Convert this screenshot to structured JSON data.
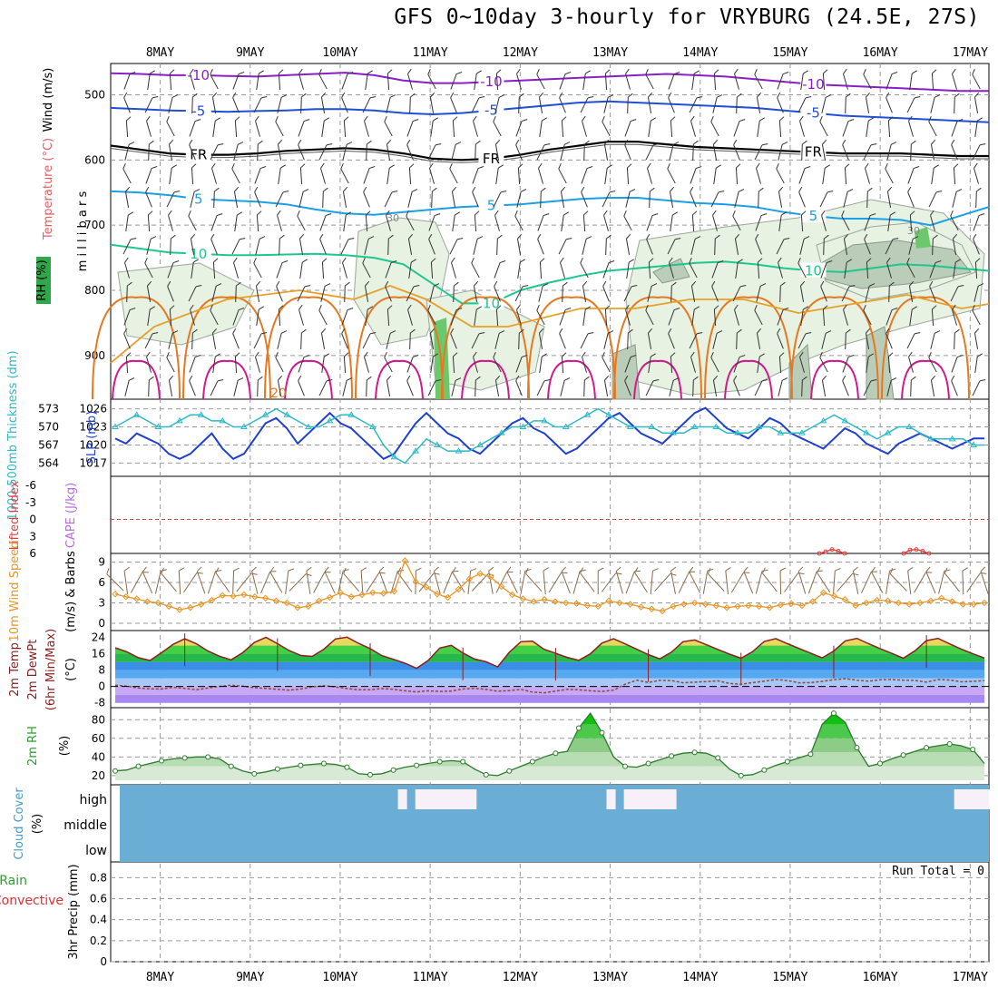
{
  "title": "GFS 0~10day 3-hourly for VRYBURG (24.5E, 27S)",
  "dates": [
    "8MAY",
    "9MAY",
    "10MAY",
    "11MAY",
    "12MAY",
    "13MAY",
    "14MAY",
    "15MAY",
    "16MAY",
    "17MAY"
  ],
  "colors": {
    "purple": "#8a1ec8",
    "blue": "#1f4fd6",
    "black": "#000000",
    "lightblue": "#1aa0e6",
    "green": "#1ec88c",
    "orange1": "#e6a028",
    "orange2": "#e67820",
    "magenta": "#d01a8c",
    "cyan": "#2fb8c8",
    "slp": "#1f3fd0",
    "wind10": "#e6962a",
    "barb": "#8a6a4a",
    "temp": "#8c1e1e",
    "cloud": "#6aaed6"
  },
  "chart_data": [
    {
      "id": "upper_air",
      "type": "contour",
      "ylabel": "m i l l i b a r s",
      "side_labels": [
        "Wind (m/s)",
        "Temperature (°C)",
        "RH (%)"
      ],
      "yticks": [
        500,
        600,
        700,
        800,
        900
      ],
      "ylim": [
        1000,
        450
      ],
      "isotherms": [
        {
          "label": "-10",
          "color": "purple",
          "y": [
            467,
            468,
            470,
            470,
            471,
            472,
            470,
            468,
            466,
            470,
            478,
            482,
            482,
            480,
            478,
            476,
            474,
            472,
            470,
            468,
            470,
            472,
            476,
            480,
            484,
            486,
            488,
            490,
            492,
            494,
            494
          ]
        },
        {
          "label": "-5",
          "color": "blue",
          "y": [
            520,
            522,
            524,
            525,
            526,
            525,
            524,
            522,
            522,
            524,
            528,
            530,
            528,
            524,
            520,
            516,
            512,
            510,
            512,
            514,
            516,
            518,
            520,
            524,
            528,
            532,
            534,
            536,
            538,
            540,
            542
          ]
        },
        {
          "label": "FR",
          "color": "black",
          "y": [
            578,
            584,
            590,
            592,
            592,
            590,
            586,
            584,
            582,
            584,
            590,
            598,
            600,
            598,
            592,
            584,
            578,
            572,
            572,
            576,
            580,
            582,
            584,
            586,
            588,
            590,
            590,
            590,
            592,
            594,
            594
          ]
        },
        {
          "label": "5",
          "color": "lightblue",
          "y": [
            648,
            650,
            654,
            660,
            662,
            664,
            668,
            676,
            682,
            684,
            680,
            676,
            672,
            670,
            668,
            664,
            660,
            658,
            658,
            662,
            666,
            668,
            672,
            680,
            686,
            690,
            690,
            692,
            700,
            686,
            672
          ]
        },
        {
          "label": "10",
          "color": "green",
          "y": [
            730,
            736,
            742,
            744,
            746,
            746,
            745,
            744,
            746,
            750,
            760,
            790,
            820,
            820,
            800,
            788,
            778,
            770,
            766,
            762,
            758,
            756,
            760,
            766,
            770,
            772,
            766,
            760,
            762,
            766,
            770
          ]
        }
      ],
      "rh_label": "30"
    },
    {
      "id": "slp_thickness",
      "type": "line",
      "ylabel_left": "1000-500mb Thickness (dm)",
      "ylabel_right": "SLP (mb)",
      "yticks_left": [
        564,
        567,
        570,
        573
      ],
      "yticks_right": [
        1017,
        1020,
        1023,
        1026
      ],
      "series": [
        {
          "name": "SLP",
          "unit": "mb",
          "values": [
            1021,
            1020,
            1022,
            1021,
            1020,
            1018,
            1017,
            1018,
            1020,
            1022,
            1019,
            1017,
            1018,
            1021,
            1024,
            1025,
            1023,
            1020,
            1022,
            1024,
            1026,
            1024,
            1023,
            1021,
            1019,
            1017,
            1018,
            1021,
            1024,
            1026,
            1024,
            1022,
            1021,
            1019,
            1018,
            1020,
            1022,
            1024,
            1025,
            1023,
            1022,
            1020,
            1018,
            1019,
            1021,
            1023,
            1025,
            1026,
            1024,
            1022,
            1021,
            1020,
            1022,
            1024,
            1026,
            1027,
            1025,
            1023,
            1022,
            1021,
            1023,
            1025,
            1024,
            1022,
            1021,
            1020,
            1019,
            1021,
            1023,
            1022,
            1020,
            1019,
            1018,
            1020,
            1021,
            1022,
            1021,
            1020,
            1019,
            1020,
            1021,
            1021
          ]
        },
        {
          "name": "Thickness",
          "unit": "dm",
          "values": [
            570,
            571,
            572,
            571,
            570,
            570,
            571,
            572,
            572,
            571,
            571,
            570,
            570,
            571,
            572,
            573,
            572,
            571,
            570,
            570,
            571,
            572,
            572,
            571,
            570,
            567,
            565,
            564,
            566,
            568,
            567,
            566,
            566,
            566,
            567,
            568,
            569,
            570,
            570,
            571,
            571,
            570,
            570,
            571,
            572,
            573,
            572,
            571,
            570,
            570,
            570,
            569,
            569,
            569,
            570,
            570,
            570,
            569,
            569,
            569,
            570,
            570,
            569,
            569,
            569,
            570,
            571,
            572,
            571,
            570,
            569,
            568,
            569,
            570,
            570,
            569,
            568,
            568,
            568,
            568,
            567,
            567
          ]
        }
      ]
    },
    {
      "id": "cape_li",
      "type": "line",
      "ylabel_left": "Lifted Index",
      "ylabel_right": "CAPE (J/kg)",
      "yticks": [
        -6,
        -3,
        0,
        3,
        6
      ],
      "ytick_labels": [
        "-6",
        "-3",
        "0",
        "3",
        "6"
      ],
      "series": [
        {
          "name": "Lifted Index (segment 1)",
          "values": [
            6.0,
            5.7,
            5.3,
            5.6,
            6.0
          ]
        },
        {
          "name": "Lifted Index (segment 2)",
          "values": [
            6.0,
            5.4,
            5.3,
            5.6,
            6.0
          ]
        }
      ]
    },
    {
      "id": "wind10m",
      "type": "line",
      "ylabel_left": "10m Wind Speed",
      "ylabel_right": "(m/s) & Barbs",
      "yticks": [
        0,
        3,
        6,
        9
      ],
      "values": [
        4.3,
        3.9,
        3.6,
        3.2,
        3.0,
        2.5,
        2.0,
        2.3,
        2.8,
        3.4,
        4.1,
        4.0,
        4.2,
        3.9,
        3.7,
        3.3,
        3.0,
        2.3,
        2.5,
        3.3,
        3.8,
        4.5,
        3.9,
        4.2,
        4.5,
        4.4,
        4.7,
        9.2,
        6.1,
        5.3,
        4.3,
        3.8,
        5.0,
        6.5,
        7.3,
        6.8,
        5.4,
        4.2,
        3.6,
        3.2,
        3.5,
        3.2,
        3.0,
        2.9,
        2.6,
        2.5,
        3.3,
        3.0,
        2.8,
        2.4,
        2.1,
        1.8,
        2.5,
        2.8,
        3.0,
        2.8,
        2.6,
        2.3,
        2.5,
        2.6,
        2.5,
        2.3,
        2.7,
        2.9,
        2.6,
        3.2,
        4.5,
        4.0,
        3.5,
        2.6,
        3.0,
        3.4,
        3.3,
        3.0,
        2.8,
        3.0,
        3.3,
        3.7,
        3.2,
        2.8,
        2.8,
        3.0
      ]
    },
    {
      "id": "temp_dewpt",
      "type": "area",
      "ylabel": "2m Temp 2m DewPt (6hr Min/Max) (°C)",
      "yticks": [
        -8,
        0,
        8,
        16,
        24
      ],
      "ytick_labels": [
        "-8",
        "0",
        "8",
        "16",
        "24"
      ],
      "series": [
        {
          "name": "2m Temp",
          "values": [
            18.9,
            16.9,
            14.1,
            12.7,
            16.5,
            20.6,
            23.3,
            20.9,
            17.3,
            14.8,
            13.0,
            16.5,
            21.5,
            24.0,
            20.9,
            17.6,
            15.2,
            14.7,
            18.2,
            23.2,
            24.1,
            21.1,
            18.5,
            15.1,
            13.3,
            11.4,
            8.9,
            12.7,
            18.8,
            20.1,
            16.4,
            13.4,
            12.1,
            9.6,
            16.7,
            21.9,
            22.2,
            18.2,
            16.2,
            14.2,
            12.8,
            16.0,
            21.2,
            23.3,
            20.8,
            18.2,
            15.6,
            13.5,
            16.8,
            21.9,
            22.7,
            20.4,
            18.1,
            15.8,
            13.8,
            17.0,
            22.0,
            23.4,
            20.9,
            18.6,
            16.3,
            14.0,
            17.3,
            22.3,
            23.5,
            20.9,
            18.5,
            16.2,
            13.8,
            17.4,
            22.4,
            23.5,
            20.8,
            18.3,
            16.0,
            13.9
          ]
        },
        {
          "name": "2m DewPt",
          "values": [
            0.6,
            0.2,
            -0.7,
            -1.1,
            -1.2,
            -0.4,
            -0.9,
            -1.6,
            -0.7,
            0.1,
            0.6,
            0.2,
            -0.6,
            -0.9,
            -1.4,
            -1.8,
            -1.2,
            -0.2,
            0.4,
            -0.2,
            -1.0,
            -1.6,
            -1.6,
            -1.0,
            -1.4,
            -2.1,
            -2.6,
            -2.1,
            -2.4,
            -2.2,
            -1.2,
            -0.9,
            -1.4,
            -2.3,
            -2.0,
            -1.4,
            -2.7,
            -3.1,
            -2.2,
            -1.4,
            -1.6,
            -2.1,
            -2.4,
            -1.8,
            1.1,
            3.1,
            2.0,
            3.0,
            2.9,
            1.8,
            2.1,
            2.4,
            2.8,
            1.5,
            1.1,
            1.9,
            2.6,
            3.4,
            2.9,
            1.8,
            1.9,
            2.5,
            3.3,
            3.8,
            3.1,
            2.6,
            3.3,
            3.4,
            3.1,
            3.0,
            2.1,
            3.4,
            3.2,
            2.3,
            2.5,
            2.9
          ]
        }
      ]
    },
    {
      "id": "rh2m",
      "type": "area",
      "ylabel": "2m RH (%)",
      "yticks": [
        20,
        40,
        60,
        80
      ],
      "values": [
        25,
        26,
        30,
        33,
        36,
        38,
        39,
        40,
        40,
        38,
        30,
        25,
        22,
        24,
        27,
        29,
        31,
        32,
        33,
        32,
        29,
        22,
        21,
        22,
        26,
        29,
        31,
        33,
        35,
        36,
        35,
        27,
        21,
        20,
        25,
        30,
        35,
        40,
        44,
        46,
        71,
        87,
        66,
        40,
        30,
        29,
        33,
        37,
        41,
        44,
        45,
        44,
        39,
        27,
        20,
        21,
        26,
        31,
        35,
        39,
        43,
        75,
        87,
        77,
        50,
        30,
        33,
        38,
        42,
        46,
        50,
        52,
        54,
        52,
        48,
        33
      ]
    },
    {
      "id": "cloud",
      "type": "heatmap",
      "ylabel": "Cloud Cover (%)",
      "levels": [
        "high",
        "middle",
        "low"
      ],
      "high_cloud_present": [
        0,
        0,
        0,
        0,
        0,
        0,
        0,
        0,
        0,
        0,
        0,
        0,
        0,
        0,
        0,
        0,
        0,
        0,
        0,
        0,
        0,
        0,
        0,
        0,
        0,
        0,
        0,
        0,
        0,
        0,
        0,
        0,
        1,
        0,
        1,
        1,
        1,
        1,
        1,
        1,
        1,
        0,
        0,
        0,
        0,
        0,
        0,
        0,
        0,
        0,
        0,
        0,
        0,
        0,
        0,
        0,
        1,
        0,
        1,
        1,
        1,
        1,
        1,
        1,
        0,
        0,
        0,
        0,
        0,
        0,
        0,
        0,
        0,
        0,
        0,
        0,
        0,
        0,
        0,
        0,
        0,
        0,
        0,
        0,
        0,
        0,
        0,
        0,
        0,
        0,
        0,
        0,
        0,
        0,
        0,
        0,
        1,
        1,
        1,
        1
      ]
    },
    {
      "id": "precip",
      "type": "bar",
      "ylabel_left": "Total / Rain Convective",
      "ylabel_right": "3hr Precip (mm)",
      "yticks": [
        0,
        0.2,
        0.4,
        0.6,
        0.8
      ],
      "ytick_labels": [
        "0",
        "0.2",
        "0.4",
        "0.6",
        "0.8"
      ],
      "run_total": "Run Total = 0",
      "values": []
    }
  ]
}
